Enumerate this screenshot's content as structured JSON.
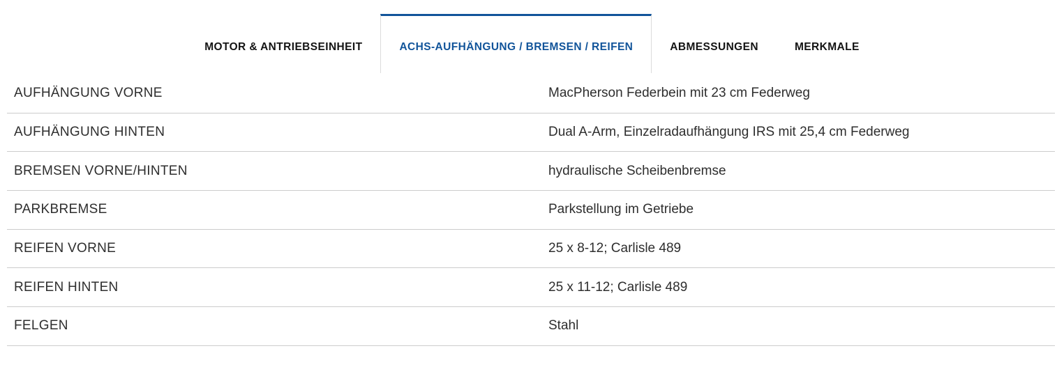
{
  "colors": {
    "accent_blue": "#11549a",
    "divider": "#cccccc",
    "tab_border": "#dbdbdb",
    "text": "#2e2e2e"
  },
  "tabs": [
    {
      "label": "MOTOR & ANTRIEBSEINHEIT",
      "active": false
    },
    {
      "label": "ACHS-AUFHÄNGUNG / BREMSEN / REIFEN",
      "active": true
    },
    {
      "label": "ABMESSUNGEN",
      "active": false
    },
    {
      "label": "MERKMALE",
      "active": false
    }
  ],
  "spec_rows": [
    {
      "label": "AUFHÄNGUNG VORNE",
      "value": "MacPherson Federbein mit 23 cm Federweg"
    },
    {
      "label": "AUFHÄNGUNG HINTEN",
      "value": "Dual A-Arm, Einzelradaufhängung IRS mit 25,4 cm Federweg"
    },
    {
      "label": "BREMSEN VORNE/HINTEN",
      "value": "hydraulische Scheibenbremse"
    },
    {
      "label": "PARKBREMSE",
      "value": "Parkstellung im Getriebe"
    },
    {
      "label": "REIFEN VORNE",
      "value": "25 x 8-12; Carlisle 489"
    },
    {
      "label": "REIFEN HINTEN",
      "value": "25 x 11-12; Carlisle 489"
    },
    {
      "label": "FELGEN",
      "value": "Stahl"
    }
  ]
}
